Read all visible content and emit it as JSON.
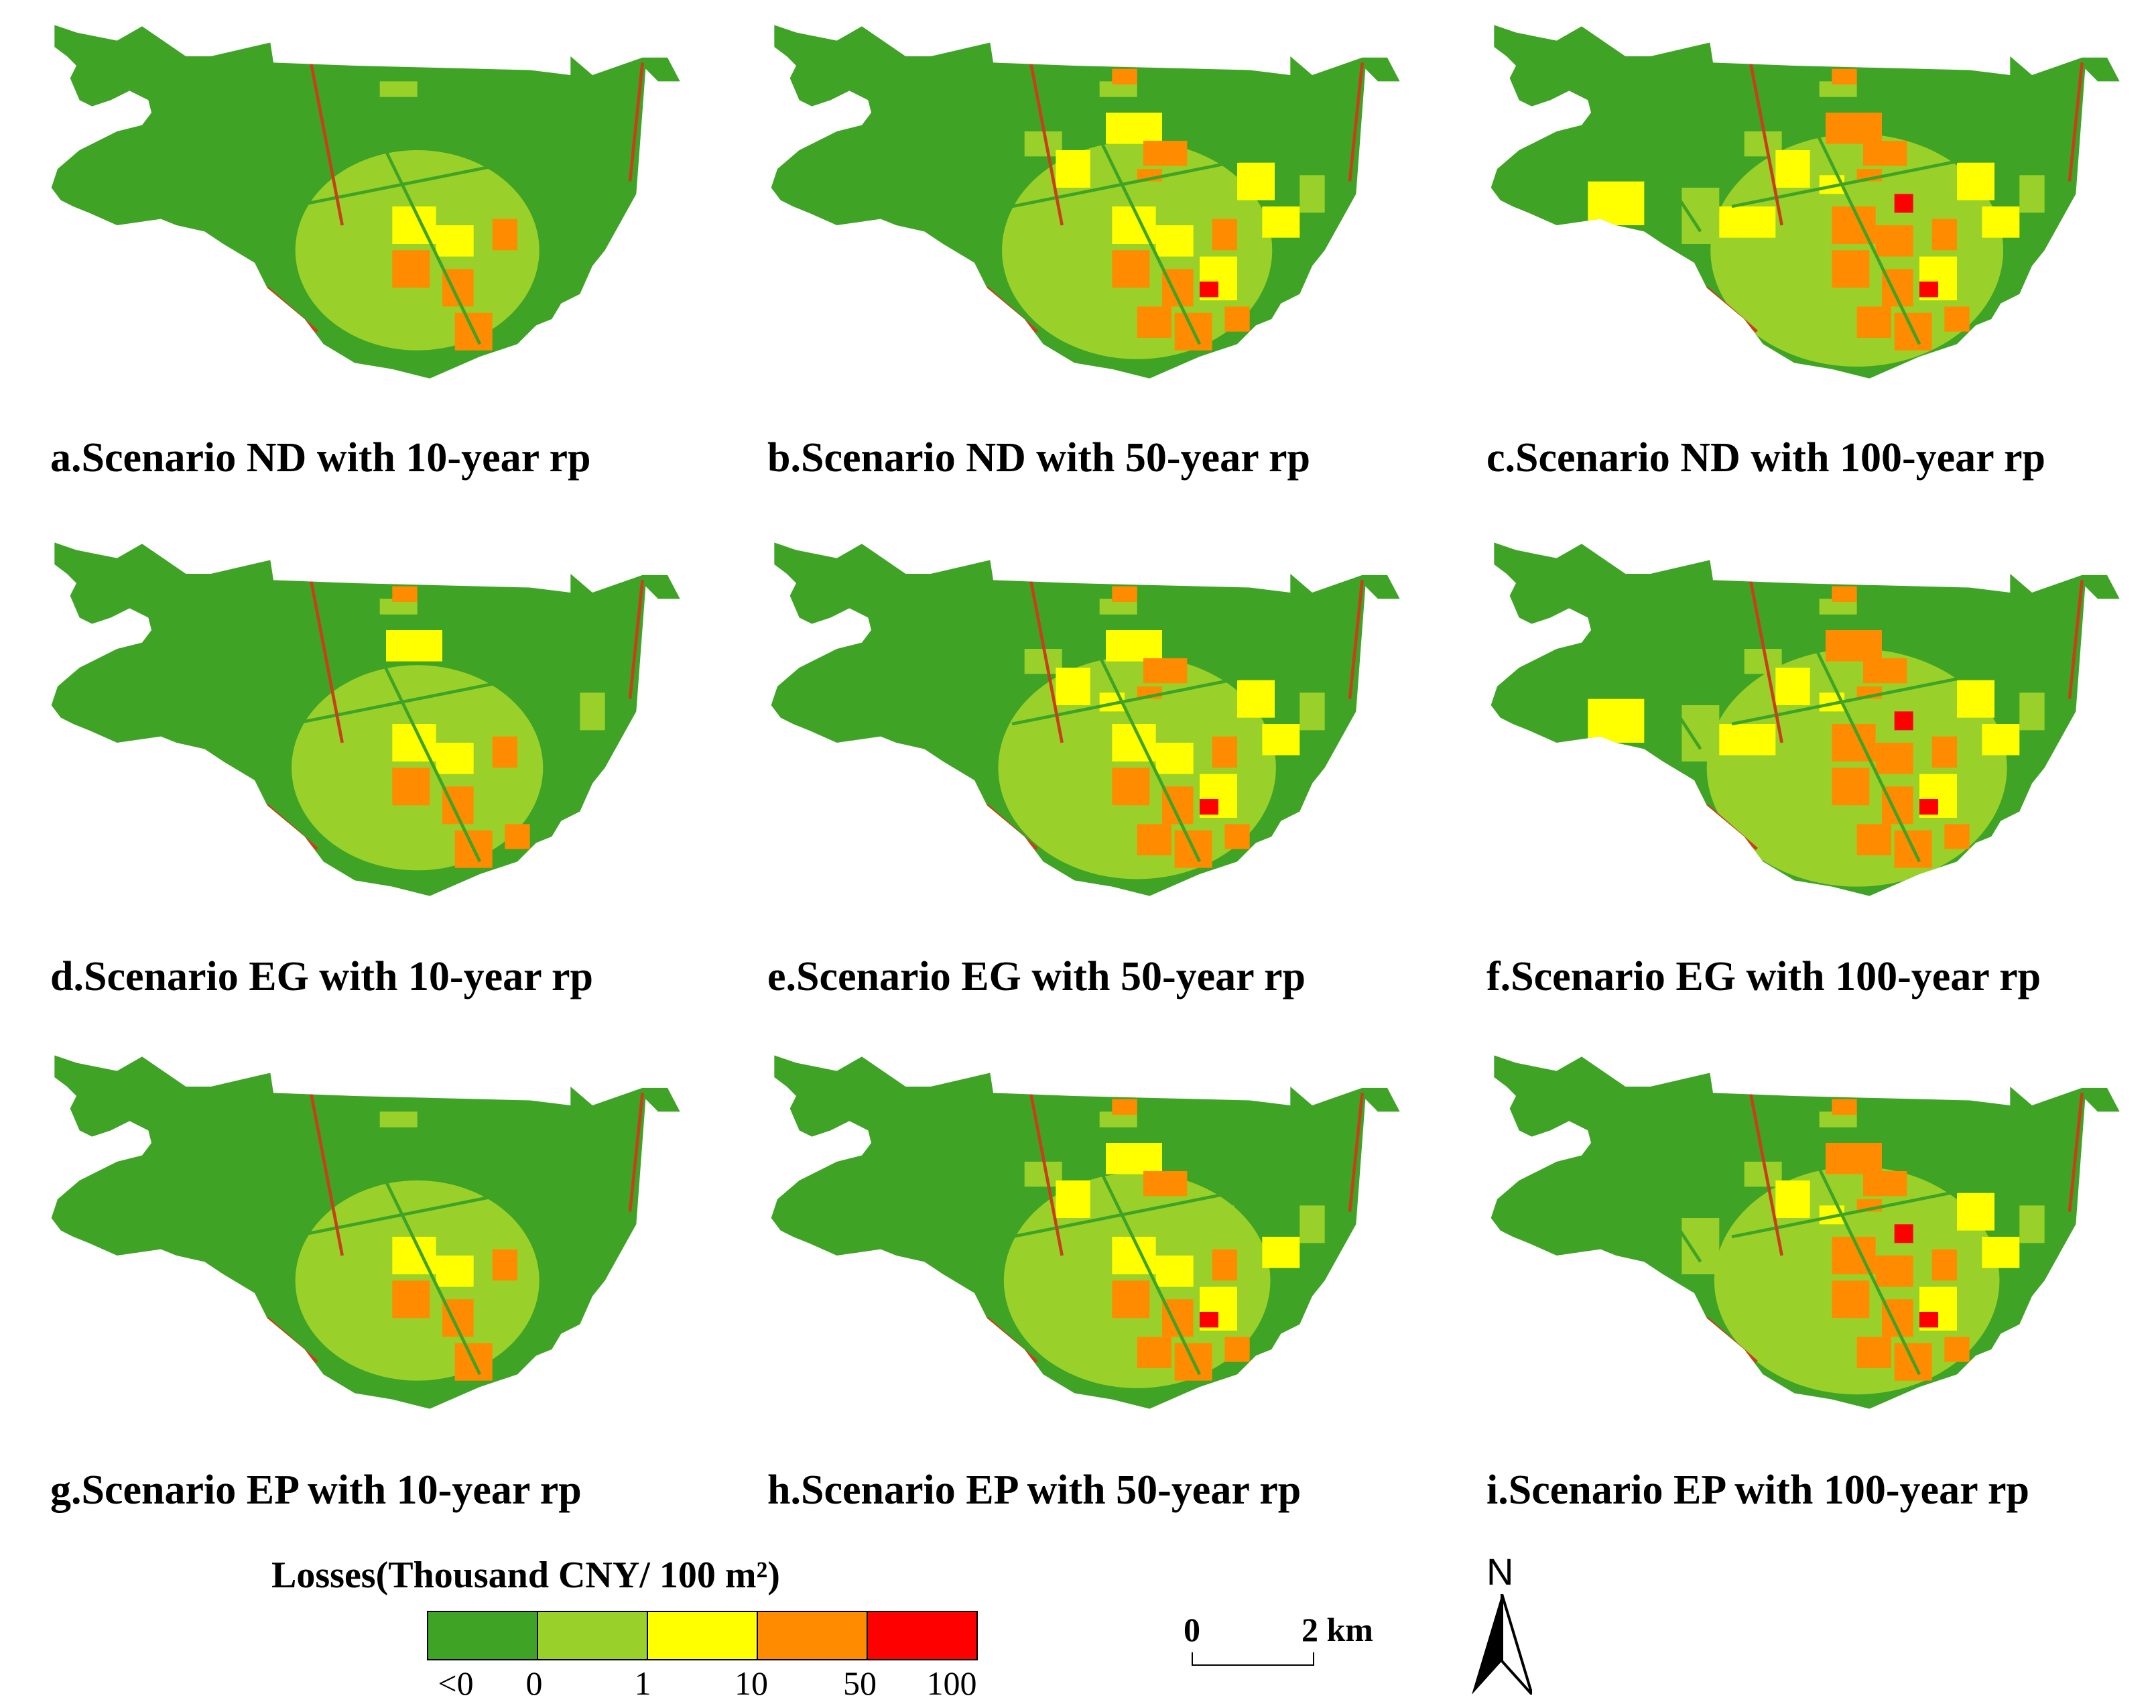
{
  "panels": [
    {
      "caption": "a.Scenario ND with 10-year rp",
      "spread": 0.25
    },
    {
      "caption": "b.Scenario ND with 50-year rp",
      "spread": 0.6
    },
    {
      "caption": "c.Scenario ND with 100-year rp",
      "spread": 0.9
    },
    {
      "caption": "d.Scenario EG with 10-year rp",
      "spread": 0.35
    },
    {
      "caption": "e.Scenario EG with 50-year rp",
      "spread": 0.7
    },
    {
      "caption": "f.Scenario EG with 100-year rp",
      "spread": 1.0
    },
    {
      "caption": "g.Scenario EP with 10-year rp",
      "spread": 0.25
    },
    {
      "caption": "h.Scenario EP with 50-year rp",
      "spread": 0.55
    },
    {
      "caption": "i.Scenario EP with 100-year rp",
      "spread": 0.8
    }
  ],
  "legend": {
    "title": "Losses(Thousand CNY/ 100 m²)",
    "classes": [
      {
        "color": "#3fa326"
      },
      {
        "color": "#99d12a"
      },
      {
        "color": "#ffff00"
      },
      {
        "color": "#ff8c00"
      },
      {
        "color": "#ff0000"
      }
    ],
    "ticks": [
      "<0",
      "0",
      "1",
      "10",
      "50",
      "100"
    ]
  },
  "scale_bar": {
    "start": "0",
    "end": "2 km"
  },
  "north": {
    "label": "N"
  }
}
